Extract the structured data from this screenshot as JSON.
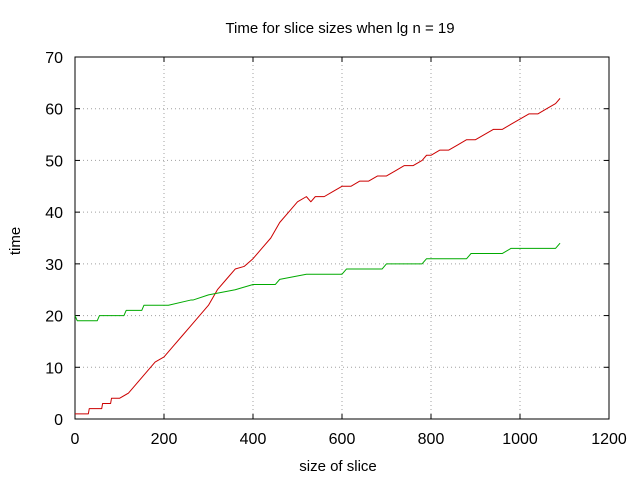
{
  "chart_data": {
    "type": "line",
    "title": "Time for slice sizes when lg n = 19",
    "xlabel": "size of slice",
    "ylabel": "time",
    "xlim": [
      0,
      1200
    ],
    "ylim": [
      0,
      70
    ],
    "xticks": [
      0,
      200,
      400,
      600,
      800,
      1000,
      1200
    ],
    "yticks": [
      0,
      10,
      20,
      30,
      40,
      50,
      60,
      70
    ],
    "grid": true,
    "legend": "none",
    "series": [
      {
        "color": "#cc0000",
        "points": [
          [
            0,
            1
          ],
          [
            30,
            1
          ],
          [
            32,
            2
          ],
          [
            60,
            2
          ],
          [
            62,
            3
          ],
          [
            80,
            3
          ],
          [
            82,
            4
          ],
          [
            100,
            4
          ],
          [
            120,
            5
          ],
          [
            140,
            7
          ],
          [
            160,
            9
          ],
          [
            180,
            11
          ],
          [
            200,
            12
          ],
          [
            220,
            14
          ],
          [
            240,
            16
          ],
          [
            260,
            18
          ],
          [
            280,
            20
          ],
          [
            300,
            22
          ],
          [
            320,
            25
          ],
          [
            340,
            27
          ],
          [
            360,
            29
          ],
          [
            380,
            29.5
          ],
          [
            400,
            31
          ],
          [
            420,
            33
          ],
          [
            440,
            35
          ],
          [
            460,
            38
          ],
          [
            480,
            40
          ],
          [
            500,
            42
          ],
          [
            520,
            43
          ],
          [
            530,
            42
          ],
          [
            540,
            43
          ],
          [
            560,
            43
          ],
          [
            580,
            44
          ],
          [
            600,
            45
          ],
          [
            620,
            45
          ],
          [
            640,
            46
          ],
          [
            660,
            46
          ],
          [
            680,
            47
          ],
          [
            700,
            47
          ],
          [
            720,
            48
          ],
          [
            740,
            49
          ],
          [
            760,
            49
          ],
          [
            780,
            50
          ],
          [
            790,
            51
          ],
          [
            800,
            51
          ],
          [
            820,
            52
          ],
          [
            840,
            52
          ],
          [
            860,
            53
          ],
          [
            880,
            54
          ],
          [
            900,
            54
          ],
          [
            920,
            55
          ],
          [
            940,
            56
          ],
          [
            960,
            56
          ],
          [
            980,
            57
          ],
          [
            1000,
            58
          ],
          [
            1020,
            59
          ],
          [
            1040,
            59
          ],
          [
            1060,
            60
          ],
          [
            1080,
            61
          ],
          [
            1090,
            62
          ]
        ]
      },
      {
        "color": "#00aa00",
        "points": [
          [
            0,
            20
          ],
          [
            5,
            19
          ],
          [
            50,
            19
          ],
          [
            55,
            20
          ],
          [
            110,
            20
          ],
          [
            115,
            21
          ],
          [
            150,
            21
          ],
          [
            155,
            22
          ],
          [
            200,
            22
          ],
          [
            210,
            22
          ],
          [
            260,
            23
          ],
          [
            265,
            23
          ],
          [
            300,
            24
          ],
          [
            360,
            25
          ],
          [
            400,
            26
          ],
          [
            450,
            26
          ],
          [
            460,
            27
          ],
          [
            520,
            28
          ],
          [
            600,
            28
          ],
          [
            610,
            29
          ],
          [
            690,
            29
          ],
          [
            700,
            30
          ],
          [
            780,
            30
          ],
          [
            790,
            31
          ],
          [
            880,
            31
          ],
          [
            890,
            32
          ],
          [
            960,
            32
          ],
          [
            980,
            33
          ],
          [
            1000,
            33
          ],
          [
            1080,
            33
          ],
          [
            1090,
            34
          ]
        ]
      }
    ]
  }
}
